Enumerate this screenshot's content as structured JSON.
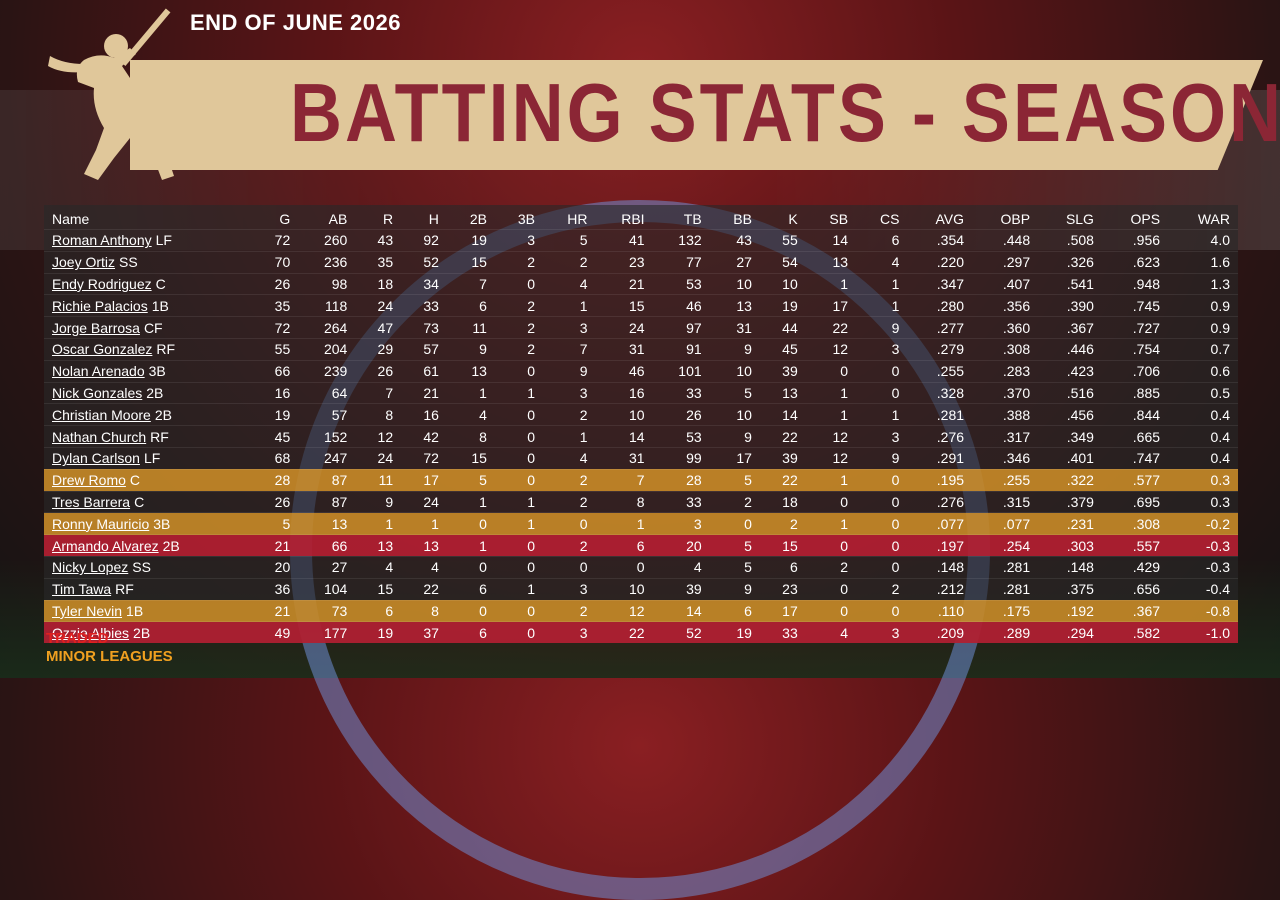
{
  "header": {
    "date": "END OF JUNE 2026",
    "title": "BATTING STATS - SEASON"
  },
  "colors": {
    "banner_bg": "#e0c79a",
    "title_text": "#8b2635",
    "highlight_orange": "#e09a28",
    "highlight_red": "#be1e32",
    "traded": "#e02020",
    "minor_leagues": "#f0a020"
  },
  "icons": {
    "batter": "baseball-batter-silhouette-icon"
  },
  "table": {
    "headers": [
      "Name",
      "G",
      "AB",
      "R",
      "H",
      "2B",
      "3B",
      "HR",
      "RBI",
      "TB",
      "BB",
      "K",
      "SB",
      "CS",
      "AVG",
      "OBP",
      "SLG",
      "OPS",
      "WAR"
    ],
    "rows": [
      {
        "name": "Roman Anthony",
        "pos": "LF",
        "highlight": "none",
        "stats": [
          "72",
          "260",
          "43",
          "92",
          "19",
          "3",
          "5",
          "41",
          "132",
          "43",
          "55",
          "14",
          "6",
          ".354",
          ".448",
          ".508",
          ".956",
          "4.0"
        ]
      },
      {
        "name": "Joey Ortiz",
        "pos": "SS",
        "highlight": "none",
        "stats": [
          "70",
          "236",
          "35",
          "52",
          "15",
          "2",
          "2",
          "23",
          "77",
          "27",
          "54",
          "13",
          "4",
          ".220",
          ".297",
          ".326",
          ".623",
          "1.6"
        ]
      },
      {
        "name": "Endy Rodriguez",
        "pos": "C",
        "highlight": "none",
        "stats": [
          "26",
          "98",
          "18",
          "34",
          "7",
          "0",
          "4",
          "21",
          "53",
          "10",
          "10",
          "1",
          "1",
          ".347",
          ".407",
          ".541",
          ".948",
          "1.3"
        ]
      },
      {
        "name": "Richie Palacios",
        "pos": "1B",
        "highlight": "none",
        "stats": [
          "35",
          "118",
          "24",
          "33",
          "6",
          "2",
          "1",
          "15",
          "46",
          "13",
          "19",
          "17",
          "1",
          ".280",
          ".356",
          ".390",
          ".745",
          "0.9"
        ]
      },
      {
        "name": "Jorge Barrosa",
        "pos": "CF",
        "highlight": "none",
        "stats": [
          "72",
          "264",
          "47",
          "73",
          "11",
          "2",
          "3",
          "24",
          "97",
          "31",
          "44",
          "22",
          "9",
          ".277",
          ".360",
          ".367",
          ".727",
          "0.9"
        ]
      },
      {
        "name": "Oscar Gonzalez",
        "pos": "RF",
        "highlight": "none",
        "stats": [
          "55",
          "204",
          "29",
          "57",
          "9",
          "2",
          "7",
          "31",
          "91",
          "9",
          "45",
          "12",
          "3",
          ".279",
          ".308",
          ".446",
          ".754",
          "0.7"
        ]
      },
      {
        "name": "Nolan Arenado",
        "pos": "3B",
        "highlight": "none",
        "stats": [
          "66",
          "239",
          "26",
          "61",
          "13",
          "0",
          "9",
          "46",
          "101",
          "10",
          "39",
          "0",
          "0",
          ".255",
          ".283",
          ".423",
          ".706",
          "0.6"
        ]
      },
      {
        "name": "Nick Gonzales",
        "pos": "2B",
        "highlight": "none",
        "stats": [
          "16",
          "64",
          "7",
          "21",
          "1",
          "1",
          "3",
          "16",
          "33",
          "5",
          "13",
          "1",
          "0",
          ".328",
          ".370",
          ".516",
          ".885",
          "0.5"
        ]
      },
      {
        "name": "Christian Moore",
        "pos": "2B",
        "highlight": "none",
        "stats": [
          "19",
          "57",
          "8",
          "16",
          "4",
          "0",
          "2",
          "10",
          "26",
          "10",
          "14",
          "1",
          "1",
          ".281",
          ".388",
          ".456",
          ".844",
          "0.4"
        ]
      },
      {
        "name": "Nathan Church",
        "pos": "RF",
        "highlight": "none",
        "stats": [
          "45",
          "152",
          "12",
          "42",
          "8",
          "0",
          "1",
          "14",
          "53",
          "9",
          "22",
          "12",
          "3",
          ".276",
          ".317",
          ".349",
          ".665",
          "0.4"
        ]
      },
      {
        "name": "Dylan Carlson",
        "pos": "LF",
        "highlight": "none",
        "stats": [
          "68",
          "247",
          "24",
          "72",
          "15",
          "0",
          "4",
          "31",
          "99",
          "17",
          "39",
          "12",
          "9",
          ".291",
          ".346",
          ".401",
          ".747",
          "0.4"
        ]
      },
      {
        "name": "Drew Romo",
        "pos": "C",
        "highlight": "orange",
        "stats": [
          "28",
          "87",
          "11",
          "17",
          "5",
          "0",
          "2",
          "7",
          "28",
          "5",
          "22",
          "1",
          "0",
          ".195",
          ".255",
          ".322",
          ".577",
          "0.3"
        ]
      },
      {
        "name": "Tres Barrera",
        "pos": "C",
        "highlight": "none",
        "stats": [
          "26",
          "87",
          "9",
          "24",
          "1",
          "1",
          "2",
          "8",
          "33",
          "2",
          "18",
          "0",
          "0",
          ".276",
          ".315",
          ".379",
          ".695",
          "0.3"
        ]
      },
      {
        "name": "Ronny Mauricio",
        "pos": "3B",
        "highlight": "orange",
        "stats": [
          "5",
          "13",
          "1",
          "1",
          "0",
          "1",
          "0",
          "1",
          "3",
          "0",
          "2",
          "1",
          "0",
          ".077",
          ".077",
          ".231",
          ".308",
          "-0.2"
        ]
      },
      {
        "name": "Armando Alvarez",
        "pos": "2B",
        "highlight": "red",
        "stats": [
          "21",
          "66",
          "13",
          "13",
          "1",
          "0",
          "2",
          "6",
          "20",
          "5",
          "15",
          "0",
          "0",
          ".197",
          ".254",
          ".303",
          ".557",
          "-0.3"
        ]
      },
      {
        "name": "Nicky Lopez",
        "pos": "SS",
        "highlight": "none",
        "stats": [
          "20",
          "27",
          "4",
          "4",
          "0",
          "0",
          "0",
          "0",
          "4",
          "5",
          "6",
          "2",
          "0",
          ".148",
          ".281",
          ".148",
          ".429",
          "-0.3"
        ]
      },
      {
        "name": "Tim Tawa",
        "pos": "RF",
        "highlight": "none",
        "stats": [
          "36",
          "104",
          "15",
          "22",
          "6",
          "1",
          "3",
          "10",
          "39",
          "9",
          "23",
          "0",
          "2",
          ".212",
          ".281",
          ".375",
          ".656",
          "-0.4"
        ]
      },
      {
        "name": "Tyler Nevin",
        "pos": "1B",
        "highlight": "orange",
        "stats": [
          "21",
          "73",
          "6",
          "8",
          "0",
          "0",
          "2",
          "12",
          "14",
          "6",
          "17",
          "0",
          "0",
          ".110",
          ".175",
          ".192",
          ".367",
          "-0.8"
        ]
      },
      {
        "name": "Ozzie Albies",
        "pos": "2B",
        "highlight": "red",
        "stats": [
          "49",
          "177",
          "19",
          "37",
          "6",
          "0",
          "3",
          "22",
          "52",
          "19",
          "33",
          "4",
          "3",
          ".209",
          ".289",
          ".294",
          ".582",
          "-1.0"
        ]
      }
    ]
  },
  "footer": {
    "traded_label": "TRADED",
    "minor_leagues_label": "MINOR LEAGUES"
  }
}
